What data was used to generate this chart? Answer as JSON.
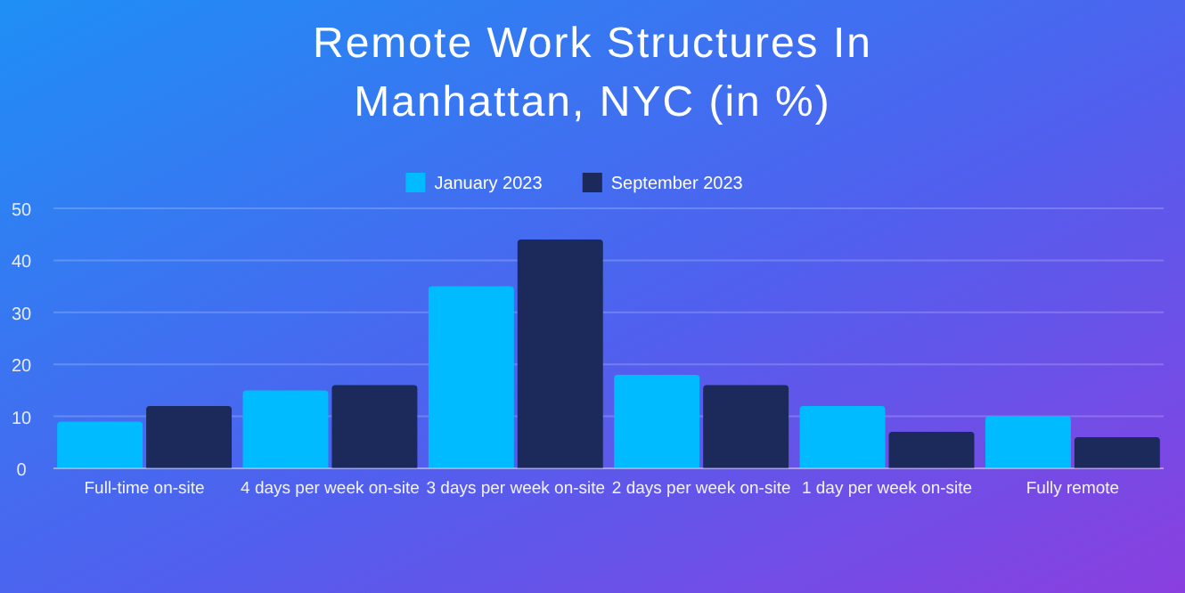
{
  "chart_data": {
    "type": "bar",
    "title": "Remote Work Structures In\nManhattan, NYC (in %)",
    "categories": [
      "Full-time on-site",
      "4 days per week on-site",
      "3 days per week on-site",
      "2 days per week on-site",
      "1 day per week on-site",
      "Fully remote"
    ],
    "series": [
      {
        "name": "January 2023",
        "color": "#00bbff",
        "values": [
          9,
          15,
          35,
          18,
          12,
          10
        ]
      },
      {
        "name": "September 2023",
        "color": "#1b2a5a",
        "values": [
          12,
          16,
          44,
          16,
          7,
          6
        ]
      }
    ],
    "ylim": [
      0,
      50
    ],
    "yticks": [
      0,
      10,
      20,
      30,
      40,
      50
    ],
    "grid": "y",
    "legend": "top"
  }
}
